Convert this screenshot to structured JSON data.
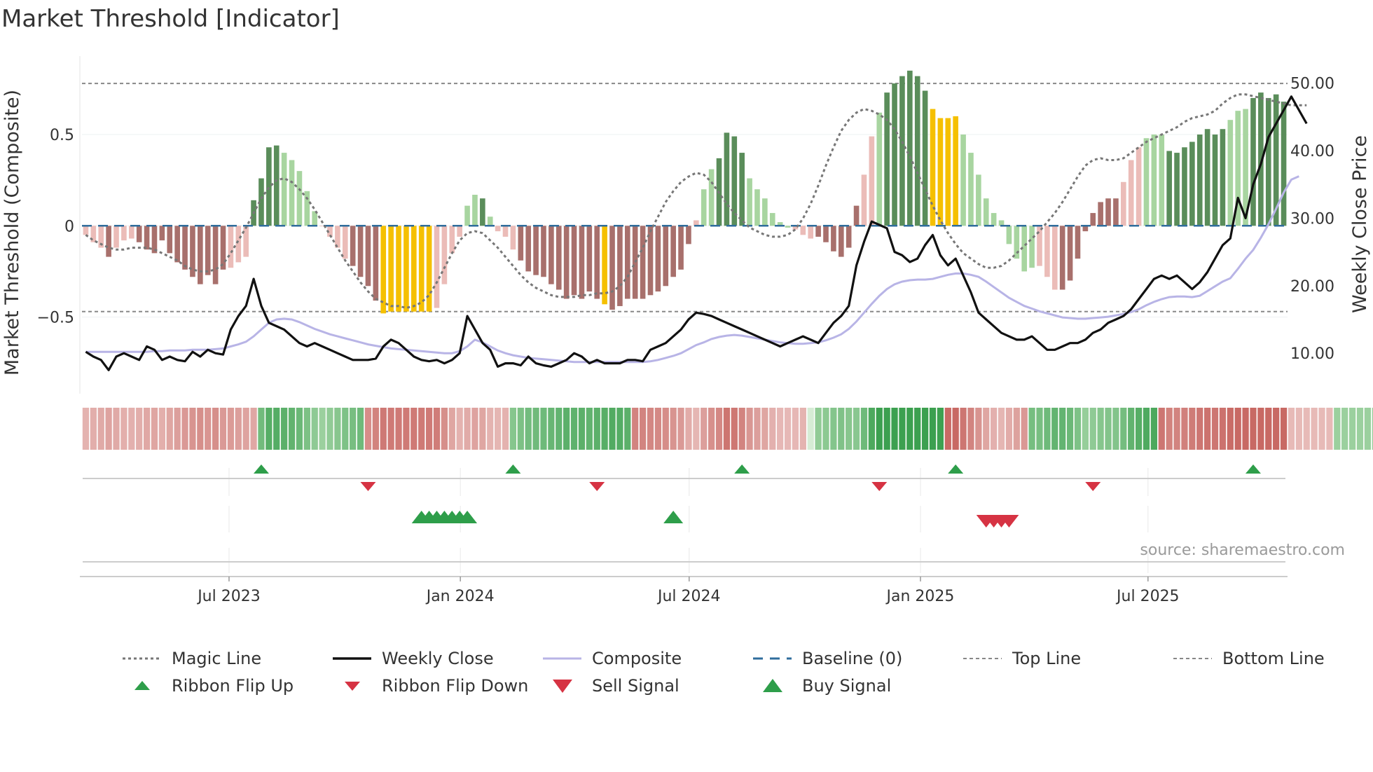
{
  "chart_data": {
    "type": "indicator-combo",
    "title": "Market Threshold [Indicator]",
    "ylabel_left": "Market Threshold (Composite)",
    "ylabel_right": "Weekly Close Price",
    "source": "source: sharemaestro.com",
    "x_start": "2023-03-06",
    "x_end": "2025-10-20",
    "x_ticks": [
      {
        "date": "2023-07-01",
        "label": "Jul 2023"
      },
      {
        "date": "2024-01-01",
        "label": "Jan 2024"
      },
      {
        "date": "2024-07-01",
        "label": "Jul 2024"
      },
      {
        "date": "2025-01-01",
        "label": "Jan 2025"
      },
      {
        "date": "2025-07-01",
        "label": "Jul 2025"
      }
    ],
    "left_axis": {
      "range": [
        -0.92,
        0.93
      ],
      "ticks": [
        {
          "value": 0.5,
          "label": "0.5"
        },
        {
          "value": 0,
          "label": "0"
        },
        {
          "value": -0.5,
          "label": "−0.5"
        }
      ]
    },
    "right_axis": {
      "range": [
        4.0,
        54.0
      ],
      "ticks": [
        {
          "value": 50,
          "label": "50.00"
        },
        {
          "value": 40,
          "label": "40.00"
        },
        {
          "value": 30,
          "label": "30.00"
        },
        {
          "value": 20,
          "label": "20.00"
        },
        {
          "value": 10,
          "label": "10.00"
        }
      ]
    },
    "top_line": 0.78,
    "bottom_line": -0.47,
    "colors": {
      "strong_pos": "#5a8d5a",
      "weak_pos": "#a8d5a0",
      "strong_neg": "#a8706c",
      "weak_neg": "#ebbcb8",
      "extreme": "#f5c000",
      "weekly_close": "#111111",
      "composite": "#b8b4e6",
      "magic": "#777777",
      "baseline": "#2f6d9c",
      "ref_line": "#888888",
      "buy": "#2e9e4a",
      "sell": "#d63343",
      "flip_up": "#2e9e4a",
      "flip_down": "#d63343"
    },
    "composite_bars": [
      -0.05,
      -0.09,
      -0.12,
      -0.17,
      -0.12,
      -0.08,
      -0.07,
      -0.09,
      -0.13,
      -0.15,
      -0.08,
      -0.15,
      -0.2,
      -0.24,
      -0.28,
      -0.32,
      -0.27,
      -0.32,
      -0.24,
      -0.23,
      -0.2,
      -0.17,
      0.14,
      0.26,
      0.43,
      0.44,
      0.4,
      0.36,
      0.3,
      0.19,
      0.08,
      0,
      -0.06,
      -0.12,
      -0.18,
      -0.22,
      -0.28,
      -0.33,
      -0.41,
      -0.48,
      -0.47,
      -0.47,
      -0.47,
      -0.47,
      -0.47,
      -0.47,
      -0.45,
      -0.32,
      -0.15,
      -0.06,
      0.11,
      0.17,
      0.15,
      0.05,
      -0.03,
      -0.06,
      -0.13,
      -0.19,
      -0.25,
      -0.27,
      -0.28,
      -0.32,
      -0.35,
      -0.4,
      -0.38,
      -0.4,
      -0.36,
      -0.4,
      -0.43,
      -0.46,
      -0.44,
      -0.4,
      -0.4,
      -0.4,
      -0.38,
      -0.36,
      -0.33,
      -0.28,
      -0.24,
      -0.1,
      0.03,
      0.2,
      0.31,
      0.37,
      0.51,
      0.49,
      0.4,
      0.26,
      0.2,
      0.15,
      0.07,
      0.02,
      -0.01,
      -0.02,
      -0.05,
      -0.07,
      -0.06,
      -0.09,
      -0.14,
      -0.17,
      -0.12,
      0.11,
      0.28,
      0.49,
      0.62,
      0.73,
      0.78,
      0.82,
      0.85,
      0.82,
      0.74,
      0.64,
      0.59,
      0.59,
      0.6,
      0.5,
      0.4,
      0.28,
      0.15,
      0.07,
      0.03,
      -0.1,
      -0.18,
      -0.25,
      -0.23,
      -0.22,
      -0.28,
      -0.35,
      -0.35,
      -0.3,
      -0.18,
      -0.03,
      0.07,
      0.13,
      0.15,
      0.15,
      0.24,
      0.36,
      0.43,
      0.48,
      0.5,
      0.5,
      0.41,
      0.4,
      0.43,
      0.46,
      0.5,
      0.53,
      0.5,
      0.53,
      0.58,
      0.63,
      0.64,
      0.7,
      0.73,
      0.7,
      0.72,
      0.68
    ],
    "bar_classes": "nnnNnnnNNNNNNNNNNNNnnnPPPPpppppnnnnNNNNXXXXXXXnnnnppPpnnnNNNNNNNNNNNXNNNNNNNNNNNnppPPPPppppppnnnNNNNNNnnpPPPPPPXXXXppppppppppnnnNNNNNNNNnnnpppPPPPPPPPpppPPPPPPPPPPPPPPPp",
    "magic_line": [
      -0.05,
      -0.08,
      -0.1,
      -0.12,
      -0.13,
      -0.13,
      -0.12,
      -0.12,
      -0.12,
      -0.13,
      -0.15,
      -0.17,
      -0.19,
      -0.22,
      -0.24,
      -0.25,
      -0.25,
      -0.24,
      -0.21,
      -0.15,
      -0.08,
      -0.01,
      0.07,
      0.15,
      0.21,
      0.25,
      0.26,
      0.24,
      0.2,
      0.15,
      0.09,
      0.02,
      -0.05,
      -0.12,
      -0.19,
      -0.25,
      -0.31,
      -0.36,
      -0.4,
      -0.42,
      -0.44,
      -0.44,
      -0.45,
      -0.44,
      -0.42,
      -0.38,
      -0.31,
      -0.23,
      -0.15,
      -0.08,
      -0.04,
      -0.03,
      -0.04,
      -0.08,
      -0.12,
      -0.17,
      -0.22,
      -0.27,
      -0.31,
      -0.34,
      -0.36,
      -0.38,
      -0.39,
      -0.39,
      -0.39,
      -0.38,
      -0.38,
      -0.37,
      -0.37,
      -0.36,
      -0.33,
      -0.28,
      -0.2,
      -0.12,
      -0.03,
      0.05,
      0.13,
      0.19,
      0.24,
      0.27,
      0.29,
      0.28,
      0.24,
      0.18,
      0.12,
      0.07,
      0.03,
      -0.01,
      -0.03,
      -0.05,
      -0.06,
      -0.06,
      -0.05,
      -0.02,
      0.04,
      0.12,
      0.22,
      0.33,
      0.43,
      0.52,
      0.58,
      0.62,
      0.64,
      0.63,
      0.61,
      0.58,
      0.53,
      0.46,
      0.38,
      0.29,
      0.2,
      0.11,
      0.03,
      -0.04,
      -0.1,
      -0.15,
      -0.18,
      -0.21,
      -0.23,
      -0.23,
      -0.22,
      -0.19,
      -0.15,
      -0.11,
      -0.07,
      -0.03,
      0.02,
      0.07,
      0.13,
      0.2,
      0.27,
      0.33,
      0.36,
      0.37,
      0.36,
      0.36,
      0.37,
      0.4,
      0.43,
      0.46,
      0.48,
      0.5,
      0.52,
      0.54,
      0.57,
      0.59,
      0.6,
      0.61,
      0.63,
      0.67,
      0.7,
      0.72,
      0.72,
      0.71,
      0.7,
      0.69,
      0.68,
      0.67,
      0.66,
      0.66,
      0.66
    ],
    "weekly_close": [
      10.2,
      9.5,
      9.0,
      7.5,
      9.5,
      10.0,
      9.5,
      9.0,
      11.0,
      10.5,
      9.0,
      9.5,
      9.0,
      8.8,
      10.2,
      9.5,
      10.5,
      10.0,
      9.8,
      13.5,
      15.5,
      17.0,
      21.0,
      17.0,
      14.5,
      14.0,
      13.5,
      12.5,
      11.5,
      11.0,
      11.5,
      11.0,
      10.5,
      10.0,
      9.5,
      9.0,
      9.0,
      9.0,
      9.2,
      11.0,
      12.0,
      11.5,
      10.5,
      9.5,
      9.0,
      8.8,
      9.0,
      8.5,
      9.0,
      10.0,
      15.5,
      13.5,
      11.5,
      10.5,
      8.0,
      8.5,
      8.5,
      8.2,
      9.5,
      8.5,
      8.2,
      8.0,
      8.5,
      9.0,
      10.0,
      9.5,
      8.5,
      9.0,
      8.5,
      8.5,
      8.5,
      9.0,
      9.0,
      8.8,
      10.5,
      11.0,
      11.5,
      12.5,
      13.5,
      15.0,
      16.0,
      15.8,
      15.5,
      15.0,
      14.5,
      14.0,
      13.5,
      13.0,
      12.5,
      12.0,
      11.5,
      11.0,
      11.5,
      12.0,
      12.5,
      12.0,
      11.5,
      13.0,
      14.5,
      15.5,
      17.0,
      23.0,
      26.5,
      29.5,
      29.0,
      28.5,
      25.0,
      24.5,
      23.5,
      24.0,
      26.0,
      27.5,
      24.5,
      23.0,
      24.0,
      21.5,
      19.0,
      16.0,
      15.0,
      14.0,
      13.0,
      12.5,
      12.0,
      12.0,
      12.5,
      11.5,
      10.5,
      10.5,
      11.0,
      11.5,
      11.5,
      12.0,
      13.0,
      13.5,
      14.5,
      15.0,
      15.5,
      16.5,
      18.0,
      19.5,
      21.0,
      21.5,
      21.0,
      21.5,
      20.5,
      19.5,
      20.5,
      22.0,
      24.0,
      26.0,
      27.0,
      33.0,
      30.0,
      35.0,
      38.0,
      42.0,
      44.0,
      46.0,
      48.0,
      46.0,
      44.0
    ],
    "composite_line": [
      10.2,
      10.2,
      10.2,
      10.2,
      10.2,
      10.2,
      10.2,
      10.2,
      10.2,
      10.3,
      10.3,
      10.4,
      10.4,
      10.4,
      10.5,
      10.5,
      10.5,
      10.6,
      10.7,
      11.0,
      11.3,
      11.7,
      12.5,
      13.5,
      14.5,
      15.0,
      15.1,
      15.0,
      14.6,
      14.1,
      13.6,
      13.2,
      12.8,
      12.5,
      12.2,
      11.9,
      11.6,
      11.3,
      11.1,
      10.9,
      10.7,
      10.6,
      10.5,
      10.4,
      10.3,
      10.2,
      10.1,
      10.0,
      10.0,
      10.3,
      11.0,
      12.0,
      11.6,
      11.0,
      10.4,
      10.0,
      9.7,
      9.5,
      9.3,
      9.2,
      9.1,
      9.0,
      8.9,
      8.8,
      8.7,
      8.7,
      8.7,
      8.7,
      8.7,
      8.7,
      8.7,
      8.7,
      8.7,
      8.7,
      8.8,
      9.0,
      9.3,
      9.6,
      10.0,
      10.6,
      11.2,
      11.6,
      12.1,
      12.4,
      12.6,
      12.7,
      12.6,
      12.4,
      12.2,
      12.0,
      11.8,
      11.6,
      11.5,
      11.4,
      11.4,
      11.5,
      11.6,
      11.9,
      12.3,
      12.8,
      13.6,
      14.7,
      16.0,
      17.3,
      18.5,
      19.5,
      20.2,
      20.6,
      20.8,
      20.9,
      20.9,
      21.0,
      21.3,
      21.6,
      21.8,
      21.8,
      21.6,
      21.3,
      20.6,
      19.8,
      19.0,
      18.2,
      17.6,
      17.0,
      16.6,
      16.2,
      15.9,
      15.6,
      15.3,
      15.2,
      15.1,
      15.1,
      15.2,
      15.3,
      15.4,
      15.6,
      15.8,
      16.1,
      16.5,
      17.1,
      17.6,
      18.0,
      18.3,
      18.4,
      18.4,
      18.3,
      18.5,
      19.2,
      19.9,
      20.6,
      21.1,
      22.5,
      24.0,
      25.3,
      27.1,
      29.1,
      31.4,
      33.8,
      35.7,
      36.2
    ],
    "ribbon": "lllllllllllllllllllllllgggggggggggggglllllllllllllllllllgggggggggggggggglllllllllllllllllllllllwggggggggggggggggglllllllllllggggggggggggggggglllllllllllllllllllllllgggggggggggggggggggggggggggggggg",
    "ribbon_flip_up": [
      23,
      56,
      86,
      114,
      153
    ],
    "ribbon_flip_down": [
      37,
      67,
      104,
      132
    ],
    "buy_signals": [
      44,
      45,
      46,
      47,
      48,
      49,
      50,
      77
    ],
    "sell_signals": [
      118,
      119,
      120,
      121
    ],
    "legend": [
      [
        "Magic Line",
        "Weekly Close",
        "Composite",
        "Baseline (0)",
        "Top Line",
        "Bottom Line"
      ],
      [
        "Ribbon Flip Up",
        "Ribbon Flip Down",
        "Sell Signal",
        "Buy Signal"
      ]
    ]
  }
}
